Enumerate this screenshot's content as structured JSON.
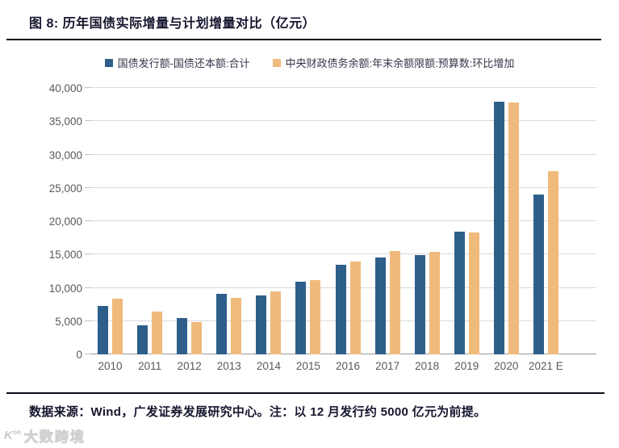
{
  "title": "图 8:  历年国债实际增量与计划增量对比（亿元）",
  "chart_data": {
    "type": "bar",
    "title": "历年国债实际增量与计划增量对比（亿元）",
    "categories": [
      "2010",
      "2011",
      "2012",
      "2013",
      "2014",
      "2015",
      "2016",
      "2017",
      "2018",
      "2019",
      "2020",
      "2021 E"
    ],
    "series": [
      {
        "name": "国债发行额-国债还本额:合计",
        "color": "#2E5F8A",
        "values": [
          7300,
          4400,
          5400,
          9100,
          8900,
          10900,
          13400,
          14600,
          14900,
          18400,
          37900,
          24000
        ]
      },
      {
        "name": "中央财政债务余额:年末余额限额:预算数:环比增加",
        "color": "#F0BA7C",
        "values": [
          8400,
          6400,
          4900,
          8500,
          9500,
          11100,
          14000,
          15500,
          15400,
          18300,
          37800,
          27500
        ]
      }
    ],
    "ylim": [
      0,
      40000
    ],
    "yticks": [
      0,
      5000,
      10000,
      15000,
      20000,
      25000,
      30000,
      35000,
      40000
    ],
    "ytick_labels": [
      "0",
      "5,000",
      "10,000",
      "15,000",
      "20,000",
      "25,000",
      "30,000",
      "35,000",
      "40,000"
    ],
    "xlabel": "",
    "ylabel": "",
    "grid": "horizontal",
    "legend_position": "top"
  },
  "footer": {
    "note": "数据来源：Wind，广发证券发展研究中心。注：以 12 月发行约 5000 亿元为前提。"
  },
  "watermark": {
    "icon": "K°°",
    "text": "大数跨境"
  },
  "colors": {
    "bar_blue": "#2E5F8A",
    "bar_orange": "#F0BA7C",
    "axis_text": "#595959",
    "gridline": "#D9D9D9",
    "title_text": "#15152E",
    "rule": "#0C0C1A"
  }
}
